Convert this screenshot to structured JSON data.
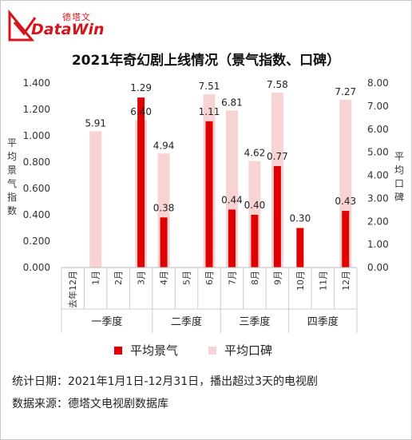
{
  "brand": {
    "name_zh": "德塔文",
    "name_en": "DataWin"
  },
  "chart_data": {
    "type": "bar",
    "title": "2021年奇幻剧上线情况（景气指数、口碑）",
    "categories": [
      "去年12月",
      "1月",
      "2月",
      "3月",
      "4月",
      "5月",
      "6月",
      "7月",
      "8月",
      "9月",
      "10月",
      "11月",
      "12月"
    ],
    "groups": [
      {
        "label": "一季度",
        "start": 0,
        "end": 3
      },
      {
        "label": "二季度",
        "start": 4,
        "end": 6
      },
      {
        "label": "三季度",
        "start": 7,
        "end": 9
      },
      {
        "label": "四季度",
        "start": 10,
        "end": 12
      }
    ],
    "series": [
      {
        "name": "平均景气",
        "axis": "left",
        "color": "#e00000",
        "values": [
          null,
          null,
          null,
          1.29,
          0.38,
          null,
          1.11,
          0.44,
          0.4,
          0.77,
          0.3,
          null,
          0.43
        ]
      },
      {
        "name": "平均口碑",
        "axis": "right",
        "color": "#f8d3d3",
        "values": [
          null,
          5.91,
          null,
          6.4,
          4.94,
          null,
          7.51,
          6.81,
          4.62,
          7.58,
          null,
          null,
          7.27
        ]
      }
    ],
    "ylabel_left": "平均景气指数",
    "ylabel_right": "平均口碑",
    "ylim_left": [
      0,
      1.4
    ],
    "ylim_right": [
      0,
      8
    ],
    "yticks_left": [
      "0.000",
      "0.200",
      "0.400",
      "0.600",
      "0.800",
      "1.000",
      "1.200",
      "1.400"
    ],
    "yticks_right": [
      "0.00",
      "1.00",
      "2.00",
      "3.00",
      "4.00",
      "5.00",
      "6.00",
      "7.00",
      "8.00"
    ],
    "grid": false
  },
  "footnotes": {
    "date_range": "统计日期：2021年1月1日-12月31日，播出超过3天的电视剧",
    "source": "数据来源：德塔文电视剧数据库"
  }
}
